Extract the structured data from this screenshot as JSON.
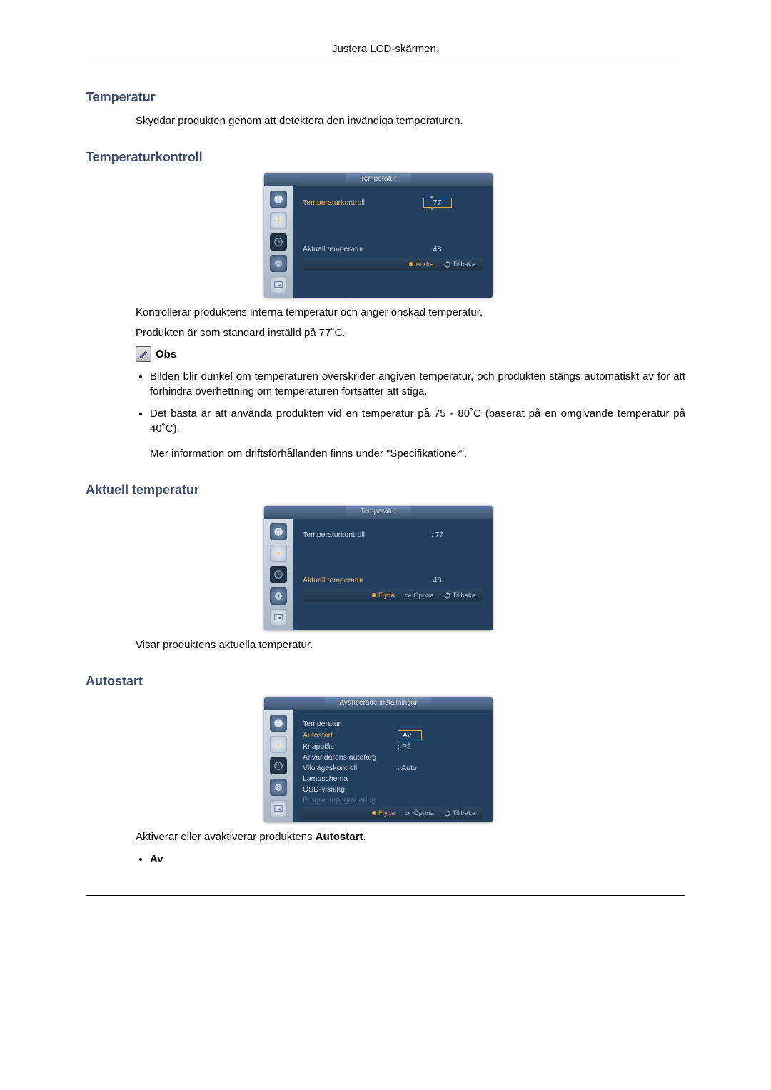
{
  "page": {
    "header": "Justera LCD-skärmen."
  },
  "sections": {
    "temperatur": {
      "heading": "Temperatur",
      "text": "Skyddar produkten genom att detektera den invändiga temperaturen."
    },
    "temperaturkontroll": {
      "heading": "Temperaturkontroll",
      "desc1": "Kontrollerar produktens interna temperatur och anger önskad temperatur.",
      "desc2": "Produkten är som standard inställd på 77˚C.",
      "note_label": "Obs",
      "bullets": [
        "Bilden blir dunkel om temperaturen överskrider angiven temperatur, och produkten stängs automatiskt av för att förhindra överhettning om temperaturen fortsätter att stiga.",
        "Det bästa är att använda produkten vid en temperatur på 75 - 80˚C (baserat på en omgivande temperatur på 40˚C)."
      ],
      "after_bullets": "Mer information om driftsförhållanden finns under \"Specifikationer\"."
    },
    "aktuell": {
      "heading": "Aktuell temperatur",
      "desc": "Visar produktens aktuella temperatur."
    },
    "autostart": {
      "heading": "Autostart",
      "desc_pre": "Aktiverar eller avaktiverar produktens ",
      "desc_bold": "Autostart",
      "desc_post": ".",
      "bullet_av": "Av"
    }
  },
  "osd_temp1": {
    "title": "Temperatur",
    "row1_label": "Temperaturkontroll",
    "row1_value": "77",
    "row2_label": "Aktuell temperatur",
    "row2_value": "48",
    "footer": {
      "a": "Ändra",
      "b": "Tillbaka"
    }
  },
  "osd_temp2": {
    "title": "Temperatur",
    "row1_label": "Temperaturkontroll",
    "row1_value": ": 77",
    "row2_label": "Aktuell temperatur",
    "row2_value": "48",
    "footer": {
      "a": "Flytta",
      "b": "Öppna",
      "c": "Tillbaka"
    }
  },
  "osd_adv": {
    "title": "Avancerade inställningar",
    "items": [
      {
        "label": "Temperatur",
        "value": "",
        "hl": false
      },
      {
        "label": "Autostart",
        "value": "",
        "hl": true
      },
      {
        "label": "Knapplås",
        "value": "",
        "hl": false
      },
      {
        "label": "Användarens autofärg",
        "value": "",
        "hl": false
      },
      {
        "label": "Vilolägeskontroll",
        "value": ": Auto",
        "hl": false
      },
      {
        "label": "Lampschema",
        "value": "",
        "hl": false
      },
      {
        "label": "OSD-visning",
        "value": "",
        "hl": false
      },
      {
        "label": "Programuppgradering",
        "value": "",
        "hl": false,
        "dim": true
      }
    ],
    "popup": {
      "opt1": "Av",
      "opt2": "På"
    },
    "footer": {
      "a": "Flytta",
      "b": "Öppna",
      "c": "Tillbaka"
    }
  },
  "colors": {
    "heading": "#3b4a6b",
    "osd_bg": "#234061",
    "osd_accent": "#e0a850"
  }
}
